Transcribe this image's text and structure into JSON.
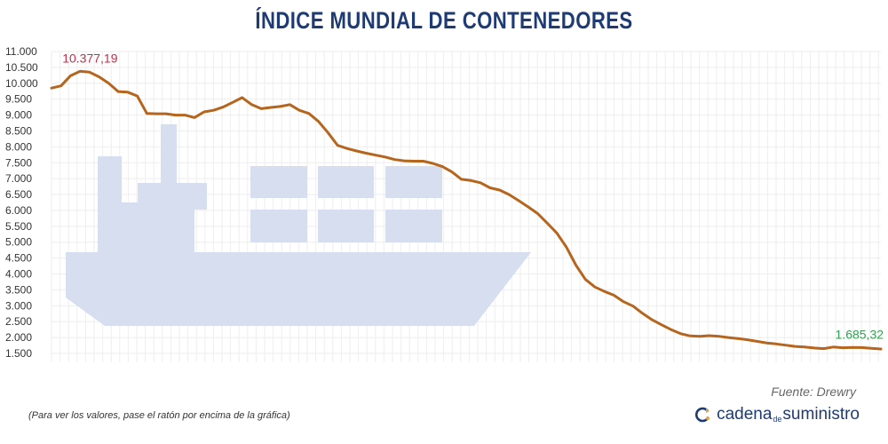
{
  "title": "ÍNDICE MUNDIAL DE CONTENEDORES",
  "source": "Fuente: Drewry",
  "hint": "(Para ver los valores, pase el ratón por encima de la gráfica)",
  "brand": {
    "part1": "cadena",
    "part2": "de",
    "part3": "suministro"
  },
  "colors": {
    "line": "#b5651d",
    "title": "#1f3b73",
    "max_label": "#c0304a",
    "last_label": "#2fa34e",
    "ship": "#d6deef",
    "grid": "#eeeeee"
  },
  "chart_data": {
    "type": "line",
    "title": "ÍNDICE MUNDIAL DE CONTENEDORES",
    "ylim": [
      1500,
      11000
    ],
    "yticks": [
      1500,
      2000,
      2500,
      3000,
      3500,
      4000,
      4500,
      5000,
      5500,
      6000,
      6500,
      7000,
      7500,
      8000,
      8500,
      9000,
      9500,
      10000,
      10500,
      11000
    ],
    "ytick_labels": [
      "1.500",
      "2.000",
      "2.500",
      "3.000",
      "3.500",
      "4.000",
      "4.500",
      "5.000",
      "5.500",
      "6.000",
      "6.500",
      "7.000",
      "7.500",
      "8.000",
      "8.500",
      "9.000",
      "9.500",
      "10.000",
      "10.500",
      "11.000"
    ],
    "grid": true,
    "series": [
      {
        "values": [
          9850,
          9920,
          10240,
          10377.19,
          10350,
          10200,
          10000,
          9740,
          9720,
          9600,
          9050,
          9040,
          9040,
          9000,
          9000,
          8920,
          9100,
          9150,
          9250,
          9400,
          9550,
          9330,
          9200,
          9240,
          9270,
          9330,
          9150,
          9050,
          8800,
          8450,
          8050,
          7950,
          7870,
          7800,
          7740,
          7680,
          7600,
          7560,
          7550,
          7550,
          7480,
          7380,
          7210,
          6980,
          6940,
          6870,
          6710,
          6640,
          6500,
          6310,
          6110,
          5900,
          5600,
          5290,
          4850,
          4280,
          3830,
          3590,
          3450,
          3330,
          3130,
          2990,
          2760,
          2560,
          2400,
          2250,
          2120,
          2050,
          2040,
          2060,
          2040,
          2000,
          1970,
          1930,
          1880,
          1830,
          1800,
          1760,
          1720,
          1700,
          1670,
          1650,
          1700,
          1680,
          1690,
          1685.32,
          1660,
          1640
        ]
      }
    ],
    "annotations": [
      {
        "text": "10.377,19",
        "index": 3
      },
      {
        "text": "1.685,32",
        "index": 85
      }
    ]
  }
}
